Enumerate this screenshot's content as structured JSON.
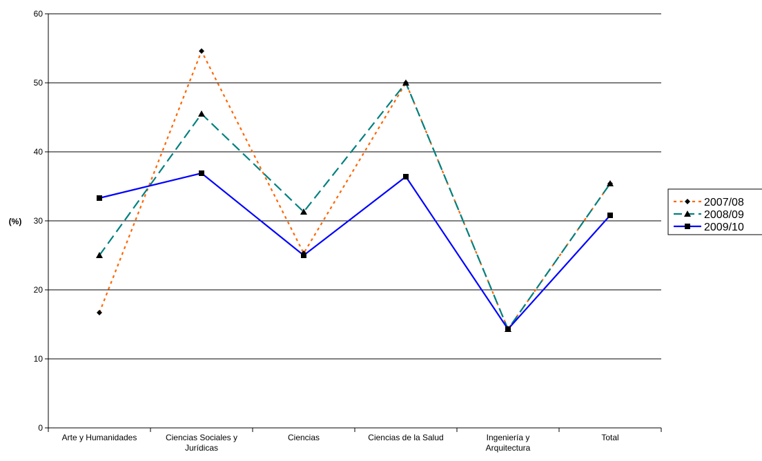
{
  "chart_data": {
    "type": "line",
    "categories": [
      [
        "Arte y Humanidades"
      ],
      [
        "Ciencias Sociales y",
        "Jurídicas"
      ],
      [
        "Ciencias"
      ],
      [
        "Ciencias de la Salud"
      ],
      [
        "Ingeniería y",
        "Arquitectura"
      ],
      [
        "Total"
      ]
    ],
    "series": [
      {
        "name": "2007/08",
        "values": [
          16.7,
          54.6,
          25.3,
          50.0,
          14.3,
          35.4
        ],
        "color": "#ff6600",
        "marker": "diamond",
        "dash": "dotted"
      },
      {
        "name": "2008/09",
        "values": [
          25.0,
          45.5,
          31.3,
          50.0,
          14.3,
          35.4
        ],
        "color": "#008080",
        "marker": "triangle",
        "dash": "dashed"
      },
      {
        "name": "2009/10",
        "values": [
          33.3,
          36.9,
          25.0,
          36.4,
          14.3,
          30.8
        ],
        "color": "#0000ff",
        "marker": "square",
        "dash": "solid"
      }
    ],
    "ylabel": "(%)",
    "ylim": [
      0,
      60
    ],
    "yticks": [
      0,
      10,
      20,
      30,
      40,
      50,
      60
    ],
    "grid": true,
    "legend": "right"
  }
}
